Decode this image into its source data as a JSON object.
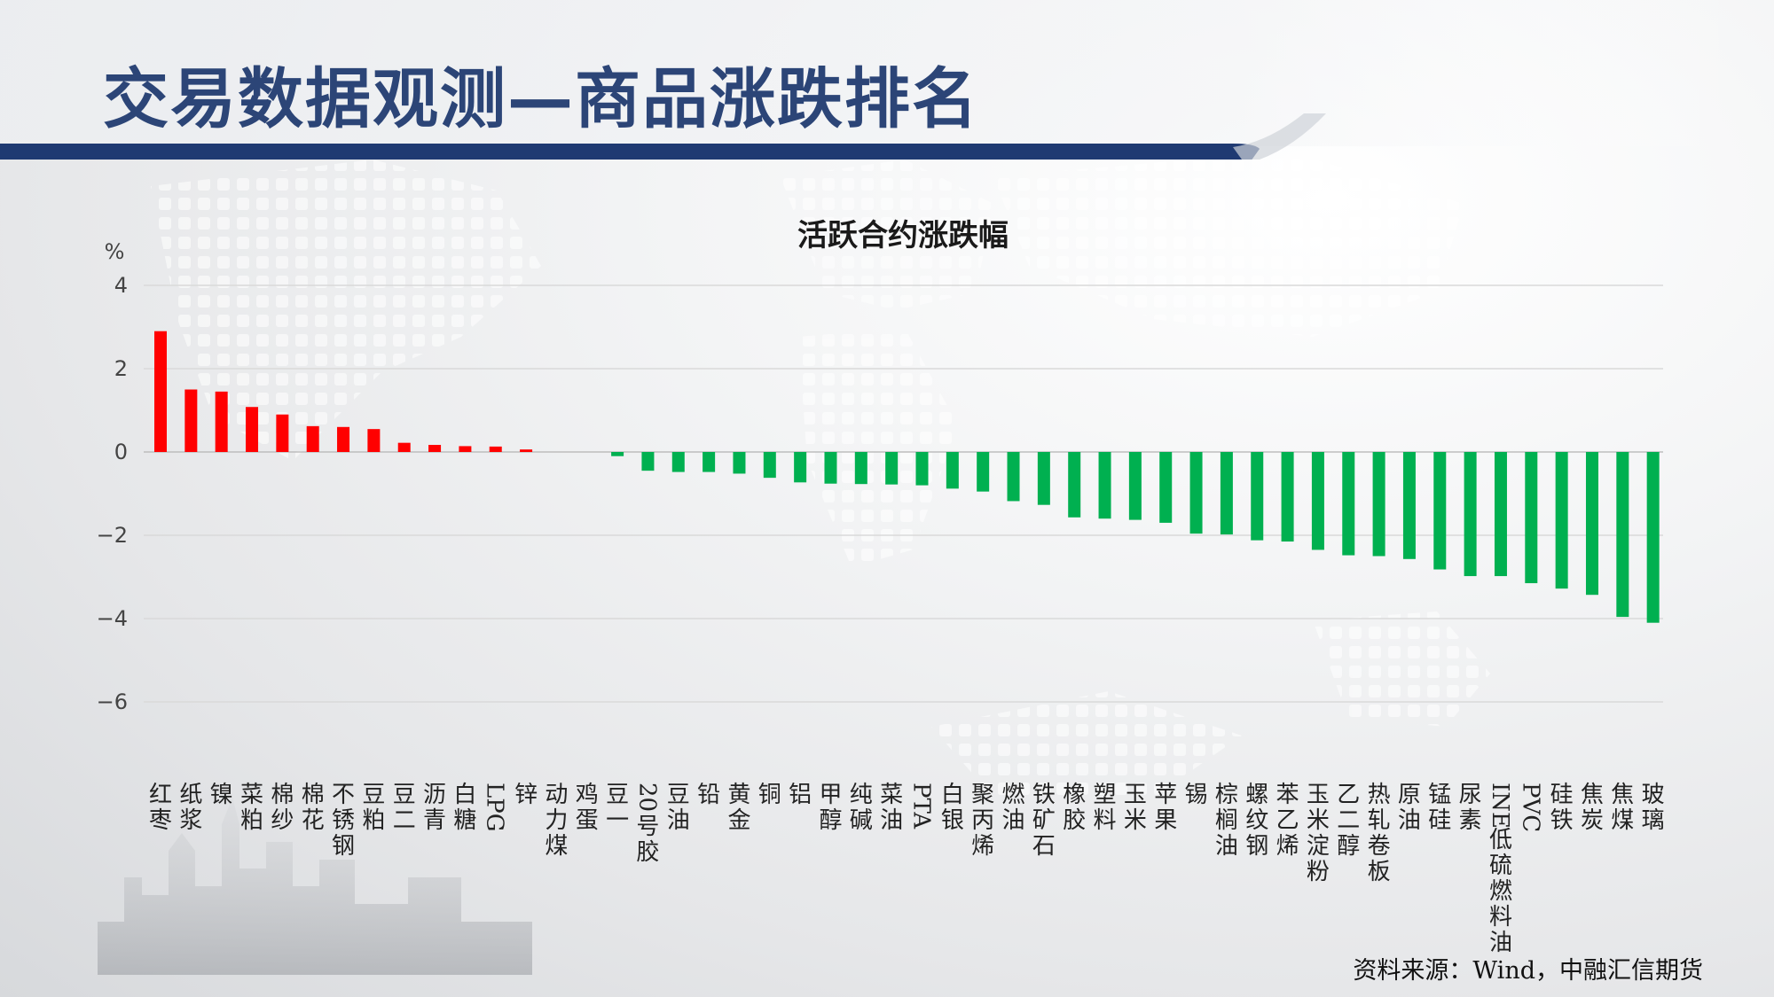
{
  "slide": {
    "title": "交易数据观测—商品涨跌排名",
    "source": "资料来源：Wind，中融汇信期货"
  },
  "chart_data": {
    "type": "bar",
    "title": "活跃合约涨跌幅",
    "ylabel": "%",
    "ylim": [
      -6,
      4
    ],
    "yticks": [
      4,
      2,
      0,
      -2,
      -4,
      -6
    ],
    "grid": true,
    "positive_color": "#ff0000",
    "negative_color": "#00b050",
    "categories": [
      "红枣",
      "纸浆",
      "镍",
      "菜粕",
      "棉纱",
      "棉花",
      "不锈钢",
      "豆粕",
      "豆二",
      "沥青",
      "白糖",
      "LPG",
      "锌",
      "动力煤",
      "鸡蛋",
      "豆一",
      "20号胶",
      "豆油",
      "铅",
      "黄金",
      "铜",
      "铝",
      "甲醇",
      "纯碱",
      "菜油",
      "PTA",
      "白银",
      "聚丙烯",
      "燃油",
      "铁矿石",
      "橡胶",
      "塑料",
      "玉米",
      "苹果",
      "锡",
      "棕榈油",
      "螺纹钢",
      "苯乙烯",
      "玉米淀粉",
      "乙二醇",
      "热轧卷板",
      "原油",
      "锰硅",
      "尿素",
      "INE低硫燃料油",
      "PVC",
      "硅铁",
      "焦炭",
      "焦煤",
      "玻璃"
    ],
    "values": [
      2.9,
      1.5,
      1.45,
      1.08,
      0.9,
      0.62,
      0.6,
      0.55,
      0.22,
      0.17,
      0.14,
      0.13,
      0.06,
      0.0,
      0.0,
      -0.1,
      -0.45,
      -0.48,
      -0.48,
      -0.52,
      -0.62,
      -0.73,
      -0.76,
      -0.77,
      -0.78,
      -0.8,
      -0.88,
      -0.95,
      -1.18,
      -1.27,
      -1.57,
      -1.6,
      -1.63,
      -1.7,
      -1.96,
      -1.98,
      -2.12,
      -2.15,
      -2.35,
      -2.48,
      -2.5,
      -2.57,
      -2.82,
      -2.98,
      -2.98,
      -3.15,
      -3.28,
      -3.43,
      -3.96,
      -4.1
    ]
  }
}
